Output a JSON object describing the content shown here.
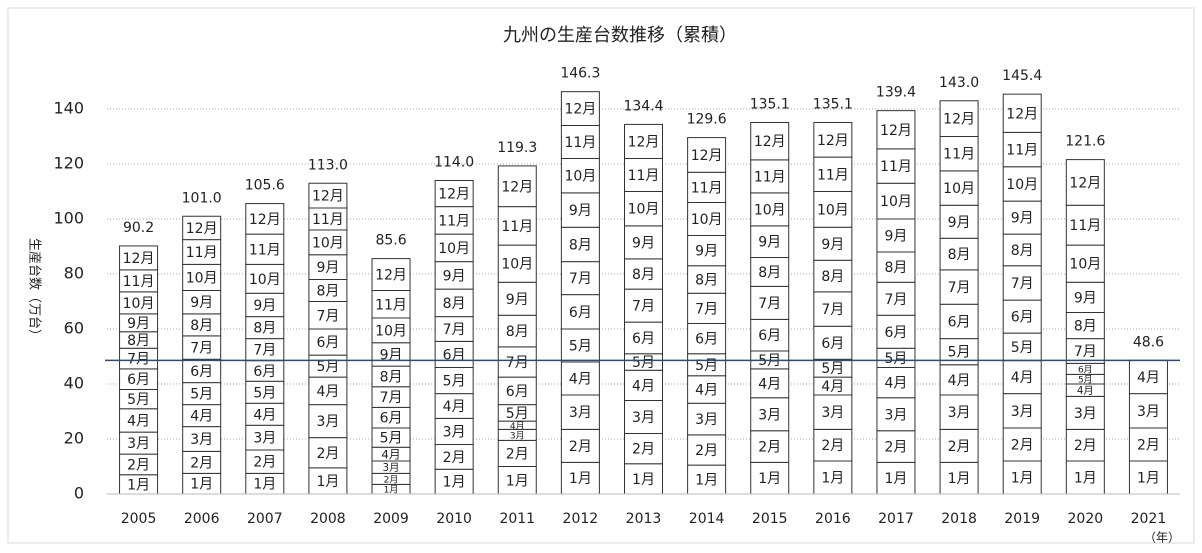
{
  "chart_data": {
    "type": "stacked_bar",
    "title": "九州の生産台数推移（累積）",
    "y_label": "生産台数（万台）",
    "x_unit_label": "（年）",
    "categories": [
      "2005",
      "2006",
      "2007",
      "2008",
      "2009",
      "2010",
      "2011",
      "2012",
      "2013",
      "2014",
      "2015",
      "2016",
      "2017",
      "2018",
      "2019",
      "2020",
      "2021"
    ],
    "color": "#ffffff",
    "edgecolor": "#333333",
    "series": [
      {
        "name": "1月",
        "values": [
          7,
          7.5,
          7.5,
          9.5,
          3.5,
          9,
          10,
          11.5,
          11,
          10.5,
          11.5,
          12,
          11.5,
          11.5,
          12,
          12,
          12
        ]
      },
      {
        "name": "2月",
        "values": [
          7.5,
          8,
          8.5,
          11,
          4,
          9,
          9.5,
          12,
          11,
          11,
          11.5,
          11.5,
          11.5,
          12,
          12,
          11.5,
          12
        ]
      },
      {
        "name": "3月",
        "values": [
          8,
          9,
          9,
          12,
          4.5,
          9.5,
          4,
          12.5,
          12,
          11.5,
          12,
          12.5,
          12,
          12.5,
          12.5,
          12,
          12.5
        ]
      },
      {
        "name": "4月",
        "values": [
          8.5,
          8,
          8,
          10,
          5,
          9,
          3,
          12,
          11,
          10,
          10.5,
          6.5,
          11,
          11,
          12,
          4.5,
          12.1
        ]
      },
      {
        "name": "5月",
        "values": [
          7,
          8,
          8,
          8,
          7,
          9.5,
          6,
          12,
          6,
          8,
          6.5,
          6.5,
          7,
          9.5,
          10,
          3.5,
          null
        ]
      },
      {
        "name": "6月",
        "values": [
          7.5,
          8.5,
          7.5,
          9.5,
          7.5,
          9.5,
          10,
          12.5,
          11.5,
          11,
          11.5,
          12,
          12,
          12.5,
          12,
          4,
          null
        ]
      },
      {
        "name": "7月",
        "values": [
          7.5,
          8.5,
          8,
          10,
          7.5,
          9,
          11,
          12,
          12,
          11,
          12,
          12.5,
          12,
          12.5,
          12.5,
          9,
          null
        ]
      },
      {
        "name": "8月",
        "values": [
          6,
          8,
          8,
          8,
          7.5,
          10,
          11.5,
          12.5,
          11,
          10,
          10.5,
          11.5,
          11,
          11.5,
          11.5,
          9.5,
          null
        ]
      },
      {
        "name": "9月",
        "values": [
          6.5,
          8.5,
          8.5,
          9,
          8.5,
          10,
          12,
          12.5,
          12,
          11,
          11.5,
          12,
          12,
          12,
          12,
          11,
          null
        ]
      },
      {
        "name": "10月",
        "values": [
          8,
          9.5,
          10.5,
          9,
          9,
          10,
          13.5,
          12.5,
          12.5,
          12,
          12,
          13,
          13,
          12.5,
          12.5,
          13.5,
          null
        ]
      },
      {
        "name": "11月",
        "values": [
          8,
          9,
          11,
          8,
          10,
          10,
          14,
          12,
          12,
          11,
          12,
          12.5,
          12.5,
          12.5,
          12.5,
          14.5,
          null
        ]
      },
      {
        "name": "12月",
        "values": [
          8.7,
          8.5,
          11.1,
          9,
          11.6,
          9.5,
          14.8,
          12.3,
          12.4,
          12.6,
          13.6,
          12.6,
          13.9,
          13,
          13.9,
          16.6,
          null
        ]
      }
    ],
    "totals": [
      90.2,
      101.0,
      105.6,
      113.0,
      85.6,
      114.0,
      119.3,
      146.3,
      134.4,
      129.6,
      135.1,
      135.1,
      139.4,
      143.0,
      145.4,
      121.6,
      48.6
    ],
    "total_labels": [
      "90.2",
      "101.0",
      "105.6",
      "113.0",
      "85.6",
      "114.0",
      "119.3",
      "146.3",
      "134.4",
      "129.6",
      "135.1",
      "135.1",
      "139.4",
      "143.0",
      "145.4",
      "121.6",
      "48.6"
    ],
    "reference_line": {
      "value": 48.6,
      "color": "#2e4a7a"
    },
    "ylim": [
      0,
      160
    ],
    "yticks": [
      0,
      20,
      40,
      60,
      80,
      100,
      120,
      140
    ],
    "grid": true
  }
}
